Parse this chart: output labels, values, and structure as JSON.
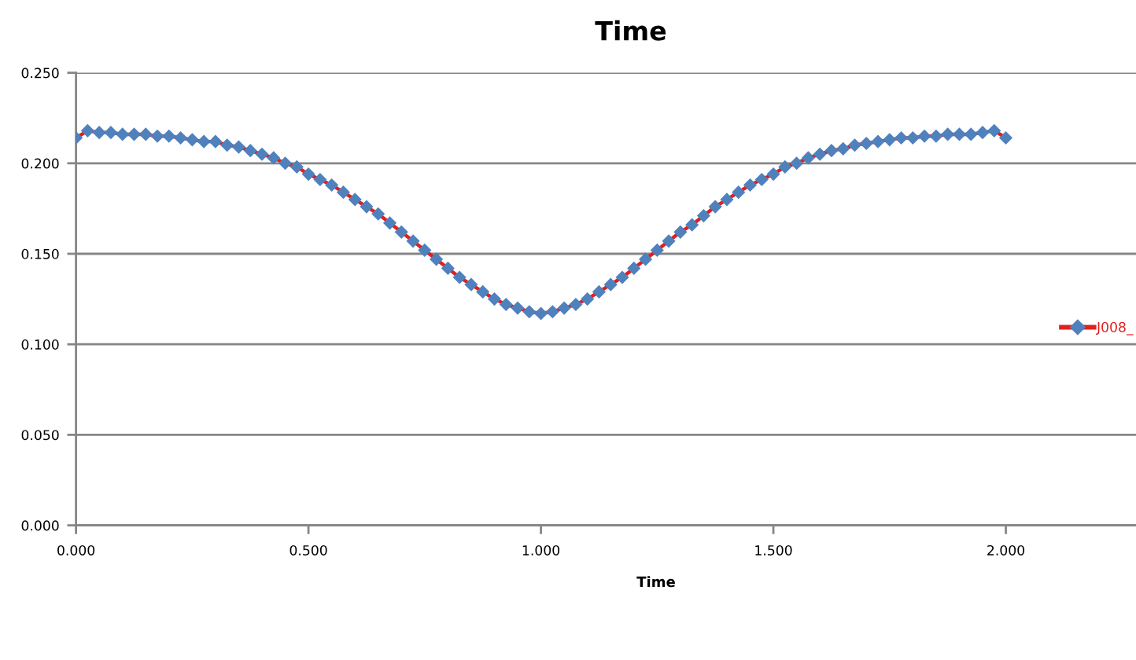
{
  "chart_data": {
    "type": "line",
    "title": "Time",
    "xlabel": "Time",
    "x": [
      0,
      0.025,
      0.05,
      0.075,
      0.1,
      0.125,
      0.15,
      0.175,
      0.2,
      0.225,
      0.25,
      0.275,
      0.3,
      0.325,
      0.35,
      0.375,
      0.4,
      0.425,
      0.45,
      0.475,
      0.5,
      0.525,
      0.55,
      0.575,
      0.6,
      0.625,
      0.65,
      0.675,
      0.7,
      0.725,
      0.75,
      0.775,
      0.8,
      0.825,
      0.85,
      0.875,
      0.9,
      0.925,
      0.95,
      0.975,
      1,
      1.025,
      1.05,
      1.075,
      1.1,
      1.125,
      1.15,
      1.175,
      1.2,
      1.225,
      1.25,
      1.275,
      1.3,
      1.325,
      1.35,
      1.375,
      1.4,
      1.425,
      1.45,
      1.475,
      1.5,
      1.525,
      1.55,
      1.575,
      1.6,
      1.625,
      1.65,
      1.675,
      1.7,
      1.725,
      1.75,
      1.775,
      1.8,
      1.825,
      1.85,
      1.875,
      1.9,
      1.925,
      1.95,
      1.975,
      2
    ],
    "series": [
      {
        "name": "J008_",
        "color": "#e0201e",
        "colors": [
          "#4f81bd",
          "#4f81bd",
          "#4f81bd",
          "#4f81bd",
          "#4f81bd",
          "#4f81bd",
          "#4f81bd",
          "#4f81bd",
          "#4f81bd",
          "#4f81bd",
          "#4f81bd",
          "#4f81bd",
          "#4f81bd",
          "#4f81bd",
          "#4f81bd",
          "#4f81bd",
          "#4f81bd",
          "#4f81bd",
          "#4f81bd",
          "#4f81bd",
          "#4f81bd",
          "#4f81bd",
          "#4f81bd",
          "#4f81bd",
          "#4f81bd",
          "#4f81bd",
          "#4f81bd",
          "#4f81bd",
          "#4f81bd",
          "#4f81bd",
          "#4f81bd",
          "#4f81bd",
          "#4f81bd",
          "#4f81bd",
          "#4f81bd",
          "#4f81bd",
          "#4f81bd",
          "#4f81bd",
          "#4f81bd",
          "#4f81bd",
          "#4f81bd",
          "#4f81bd",
          "#4f81bd",
          "#4f81bd",
          "#4f81bd",
          "#4f81bd",
          "#4f81bd",
          "#4f81bd",
          "#4f81bd",
          "#4f81bd",
          "#4f81bd",
          "#4f81bd",
          "#4f81bd",
          "#4f81bd",
          "#4f81bd",
          "#4f81bd",
          "#4f81bd",
          "#4f81bd",
          "#4f81bd",
          "#4f81bd",
          "#4f81bd",
          "#4f81bd",
          "#4f81bd",
          "#4f81bd",
          "#4f81bd",
          "#4f81bd",
          "#4f81bd",
          "#4f81bd",
          "#4f81bd",
          "#4f81bd",
          "#4f81bd",
          "#4f81bd",
          "#4f81bd",
          "#4f81bd",
          "#4f81bd",
          "#4f81bd",
          "#4f81bd",
          "#4f81bd",
          "#4f81bd",
          "#4f81bd",
          "#4f81bd"
        ],
        "values": [
          0.214,
          0.218,
          0.217,
          0.217,
          0.216,
          0.216,
          0.216,
          0.215,
          0.215,
          0.214,
          0.213,
          0.212,
          0.212,
          0.21,
          0.209,
          0.207,
          0.205,
          0.203,
          0.2,
          0.198,
          0.194,
          0.191,
          0.188,
          0.184,
          0.18,
          0.176,
          0.172,
          0.167,
          0.162,
          0.157,
          0.152,
          0.147,
          0.142,
          0.137,
          0.133,
          0.129,
          0.125,
          0.122,
          0.12,
          0.118,
          0.117,
          0.118,
          0.12,
          0.122,
          0.125,
          0.129,
          0.133,
          0.137,
          0.142,
          0.147,
          0.152,
          0.157,
          0.162,
          0.166,
          0.171,
          0.176,
          0.18,
          0.184,
          0.188,
          0.191,
          0.194,
          0.198,
          0.2,
          0.203,
          0.205,
          0.207,
          0.208,
          0.21,
          0.211,
          0.212,
          0.213,
          0.214,
          0.214,
          0.215,
          0.215,
          0.216,
          0.216,
          0.216,
          0.217,
          0.218,
          0.214
        ]
      }
    ],
    "xlim": [
      0,
      2.28
    ],
    "xticks": [
      {
        "value": 0,
        "label": "0.000"
      },
      {
        "value": 0.5,
        "label": "0.500"
      },
      {
        "value": 1,
        "label": "1.000"
      },
      {
        "value": 1.5,
        "label": "1.500"
      },
      {
        "value": 2,
        "label": "2.000"
      }
    ],
    "ylim": [
      0,
      0.25
    ],
    "yticks": [
      {
        "value": 0,
        "label": "0.000"
      },
      {
        "value": 0.05,
        "label": "0.050"
      },
      {
        "value": 0.1,
        "label": "0.100"
      },
      {
        "value": 0.15,
        "label": "0.150"
      },
      {
        "value": 0.2,
        "label": "0.200"
      },
      {
        "value": 0.25,
        "label": "0.250"
      }
    ],
    "grid": "y",
    "legend": "right",
    "marker": "diamond",
    "line_style": "solid"
  }
}
